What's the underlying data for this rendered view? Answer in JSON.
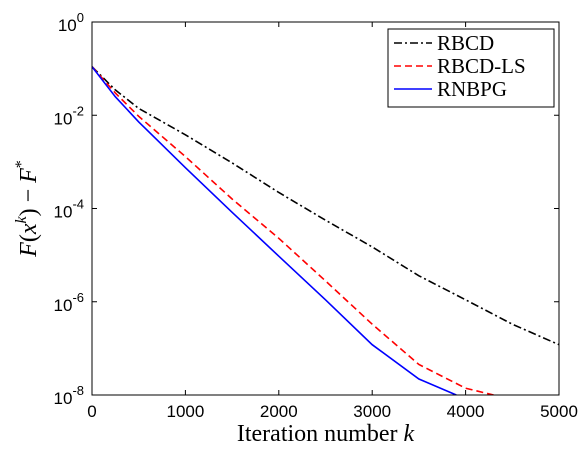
{
  "chart_data": {
    "type": "line",
    "xlabel": "Iteration number k",
    "ylabel": "F(x^k) − F*",
    "xlim": [
      0,
      5000
    ],
    "ylim": [
      1e-08,
      1
    ],
    "yscale": "log",
    "grid": false,
    "legend_position": "top-right",
    "x_ticks": [
      "0",
      "1000",
      "2000",
      "3000",
      "4000",
      "5000"
    ],
    "y_ticks": [
      {
        "base": "10",
        "exp": "0"
      },
      {
        "base": "10",
        "exp": "-2"
      },
      {
        "base": "10",
        "exp": "-4"
      },
      {
        "base": "10",
        "exp": "-6"
      },
      {
        "base": "10",
        "exp": "-8"
      }
    ],
    "series": [
      {
        "name": "RBCD",
        "color": "#000000",
        "dash": "dashdot",
        "x": [
          0,
          250,
          500,
          1000,
          1500,
          2000,
          2500,
          3000,
          3500,
          4000,
          4500,
          5000
        ],
        "y": [
          0.11,
          0.035,
          0.014,
          0.0038,
          0.00095,
          0.00022,
          5.6e-05,
          1.5e-05,
          3.6e-06,
          1.1e-06,
          3.3e-07,
          1.2e-07
        ]
      },
      {
        "name": "RBCD-LS",
        "color": "#ff0000",
        "dash": "dashed",
        "x": [
          0,
          250,
          500,
          1000,
          1500,
          2000,
          2500,
          3000,
          3500,
          4000,
          4300
        ],
        "y": [
          0.11,
          0.03,
          0.0095,
          0.0013,
          0.00016,
          2.3e-05,
          2.8e-06,
          3.3e-07,
          4.5e-08,
          1.4e-08,
          1e-08
        ]
      },
      {
        "name": "RNBPG",
        "color": "#0000ff",
        "dash": "solid",
        "x": [
          0,
          250,
          500,
          1000,
          1500,
          2000,
          2500,
          3000,
          3500,
          3900
        ],
        "y": [
          0.11,
          0.025,
          0.0072,
          0.00075,
          8.3e-05,
          9.5e-06,
          1.1e-06,
          1.2e-07,
          2.2e-08,
          1e-08
        ]
      }
    ]
  }
}
